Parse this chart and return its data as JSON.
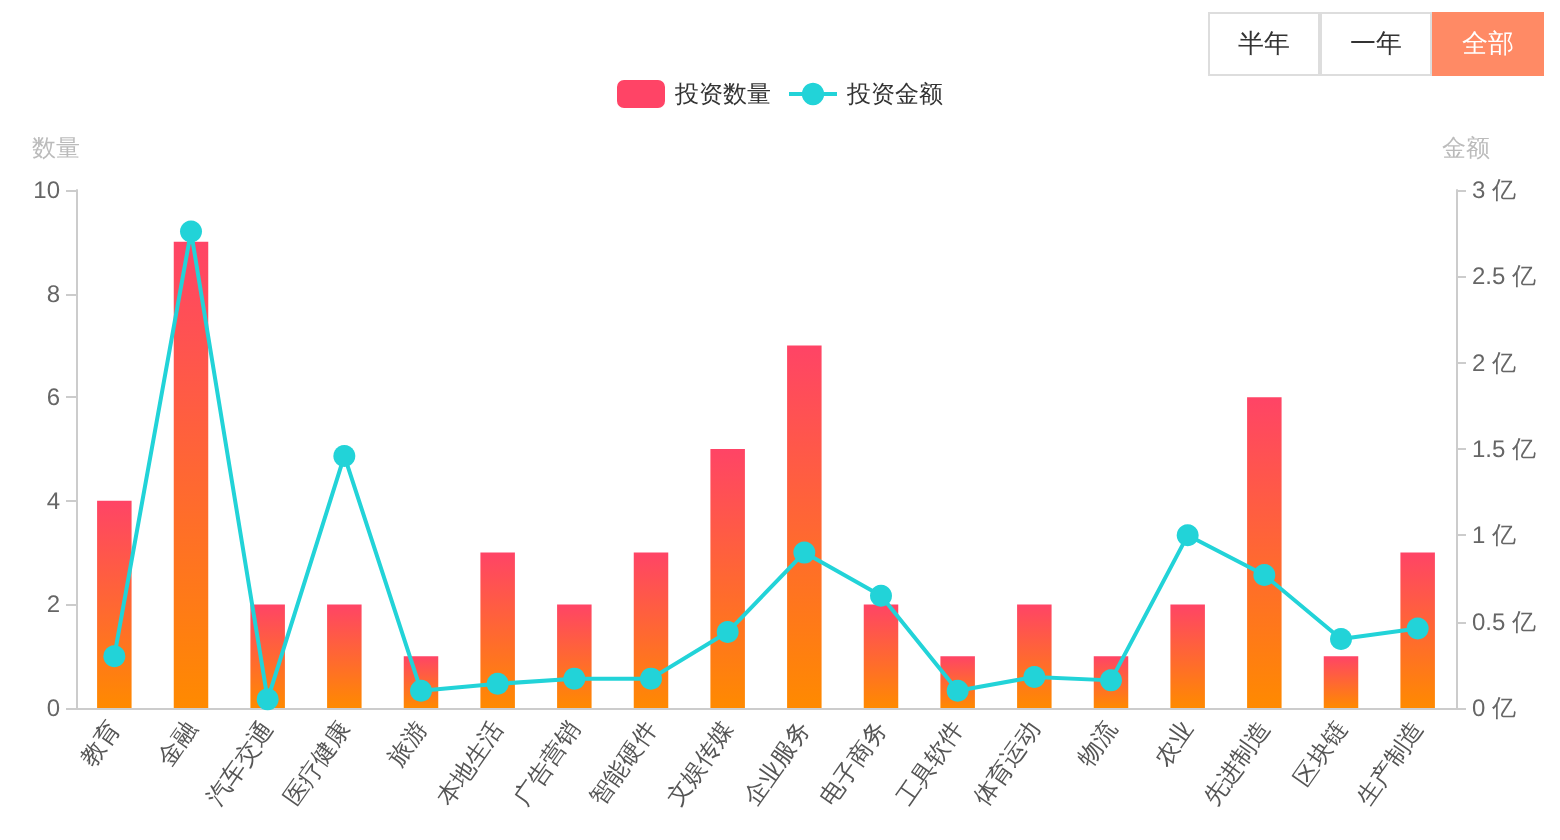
{
  "chart_data": {
    "type": "bar",
    "ylabel": "数量",
    "y2label": "金额",
    "categories": [
      "教育",
      "金融",
      "汽车交通",
      "医疗健康",
      "旅游",
      "本地生活",
      "广告营销",
      "智能硬件",
      "文娱传媒",
      "企业服务",
      "电子商务",
      "工具软件",
      "体育运动",
      "物流",
      "农业",
      "先进制造",
      "区块链",
      "生产制造"
    ],
    "series": [
      {
        "name": "投资数量",
        "color": "#ff4466",
        "values": [
          4,
          9,
          2,
          2,
          1,
          3,
          2,
          3,
          5,
          7,
          2,
          1,
          2,
          1,
          2,
          6,
          1,
          3
        ]
      },
      {
        "name": "投资金额",
        "type": "line",
        "axis": "y2",
        "color": "#22d3d8",
        "marker": "circle",
        "values": [
          0.3,
          2.76,
          0.05,
          1.46,
          0.1,
          0.14,
          0.17,
          0.17,
          0.44,
          0.9,
          0.65,
          0.1,
          0.18,
          0.16,
          1.0,
          0.77,
          0.4,
          0.46
        ]
      }
    ],
    "ylim": [
      0,
      10
    ],
    "yticks": [
      0,
      2,
      4,
      6,
      8,
      10
    ],
    "y2lim": [
      0,
      3
    ],
    "y2ticks": [
      {
        "value": 0,
        "label": "0 亿"
      },
      {
        "value": 0.5,
        "label": "0.5 亿"
      },
      {
        "value": 1,
        "label": "1 亿"
      },
      {
        "value": 1.5,
        "label": "1.5 亿"
      },
      {
        "value": 2,
        "label": "2 亿"
      },
      {
        "value": 2.5,
        "label": "2.5 亿"
      },
      {
        "value": 3,
        "label": "3 亿"
      }
    ],
    "grid": false,
    "legend": "top",
    "annotations": [
      "半年",
      "一年",
      "全部"
    ]
  }
}
